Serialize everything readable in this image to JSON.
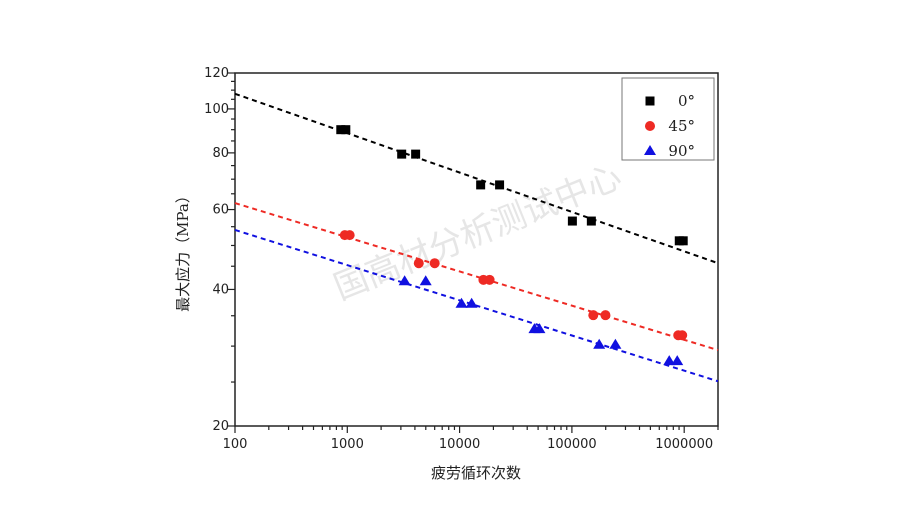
{
  "chart_data": {
    "type": "scatter",
    "xlabel": "疲劳循环次数",
    "ylabel": "最大应力（MPa）",
    "xscale": "log",
    "yscale": "log",
    "xlim": [
      100,
      2000000
    ],
    "ylim": [
      20,
      120
    ],
    "xticks": [
      "100",
      "1000",
      "10000",
      "100000",
      "1000000"
    ],
    "yticks": [
      "20",
      "40",
      "60",
      "80",
      "100",
      "120"
    ],
    "legend_position": "top-right",
    "watermark": "国高材分析测试中心",
    "series": [
      {
        "name": "0°",
        "color": "#000000",
        "marker": "square",
        "x": [
          875,
          970,
          3050,
          4060,
          15400,
          22700,
          101000,
          149000,
          904000,
          980000
        ],
        "y": [
          90,
          90,
          79.5,
          79.5,
          68,
          68,
          56.6,
          56.6,
          51.2,
          51.2
        ],
        "fit": {
          "x": [
            100,
            2000000
          ],
          "y": [
            108,
            45.7
          ]
        }
      },
      {
        "name": "45°",
        "color": "#ee2a24",
        "marker": "circle",
        "x": [
          950,
          1050,
          4330,
          6000,
          16300,
          18500,
          155000,
          199000,
          885000,
          960000
        ],
        "y": [
          52.7,
          52.7,
          45.7,
          45.7,
          42,
          42,
          35.1,
          35.1,
          31.7,
          31.7
        ],
        "fit": {
          "x": [
            100,
            2000000
          ],
          "y": [
            62,
            29.4
          ]
        }
      },
      {
        "name": "90°",
        "color": "#1010e0",
        "marker": "triangle",
        "x": [
          3240,
          4990,
          10400,
          12800,
          46400,
          51400,
          175000,
          244000,
          736000,
          867000
        ],
        "y": [
          41.7,
          41.7,
          37.2,
          37.2,
          32.7,
          32.7,
          30.2,
          30.2,
          27.8,
          27.8
        ],
        "fit": {
          "x": [
            100,
            2000000
          ],
          "y": [
            54.1,
            25.1
          ]
        }
      }
    ]
  }
}
